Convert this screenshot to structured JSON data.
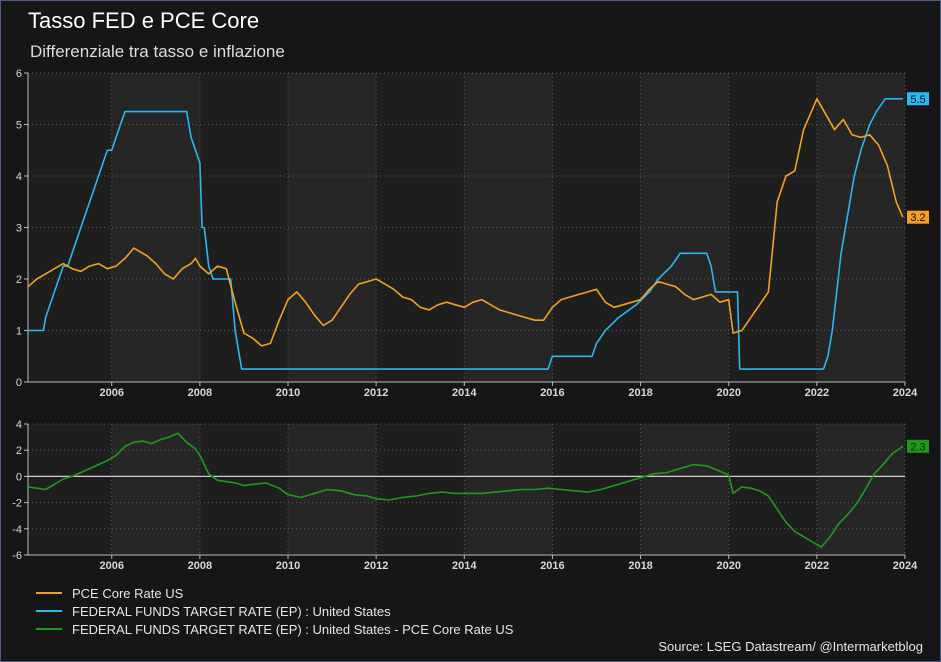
{
  "title": "Tasso FED e PCE Core",
  "subtitle": "Differenziale tra tasso e inflazione",
  "source": "Source: LSEG Datastream/ @Intermarketblog",
  "colors": {
    "pce": "#f5a024",
    "fed": "#29b8f0",
    "diff": "#1f9a1f",
    "background": "#161616",
    "plot_bg": "#1e1e1e"
  },
  "legend": [
    {
      "label": "PCE Core Rate US",
      "color": "#f5a024"
    },
    {
      "label": "FEDERAL FUNDS TARGET RATE (EP) : United States",
      "color": "#29b8f0"
    },
    {
      "label": "FEDERAL FUNDS TARGET RATE (EP) : United States - PCE Core Rate US",
      "color": "#1f9a1f"
    }
  ],
  "chart_data": [
    {
      "type": "line",
      "x_ticks": [
        "2006",
        "2008",
        "2010",
        "2012",
        "2014",
        "2016",
        "2018",
        "2020",
        "2022",
        "2024"
      ],
      "xlim": [
        2004.1,
        2024.0
      ],
      "ylim": [
        0,
        6
      ],
      "y_ticks": [
        0,
        1,
        2,
        3,
        4,
        5,
        6
      ],
      "grid": true,
      "end_labels": [
        "5.5",
        "3.2"
      ],
      "series": [
        {
          "name": "FEDERAL FUNDS TARGET RATE (EP) : United States",
          "x": [
            2004.1,
            2004.45,
            2004.5,
            2004.6,
            2004.7,
            2004.8,
            2004.9,
            2005.0,
            2005.1,
            2005.2,
            2005.3,
            2005.4,
            2005.5,
            2005.6,
            2005.7,
            2005.8,
            2005.9,
            2006.0,
            2006.1,
            2006.2,
            2006.3,
            2006.4,
            2006.5,
            2007.7,
            2007.8,
            2007.9,
            2008.0,
            2008.05,
            2008.1,
            2008.2,
            2008.3,
            2008.7,
            2008.8,
            2008.95,
            2015.9,
            2016.0,
            2016.9,
            2017.0,
            2017.2,
            2017.5,
            2017.9,
            2018.2,
            2018.4,
            2018.7,
            2018.9,
            2019.5,
            2019.6,
            2019.7,
            2020.2,
            2020.25,
            2022.15,
            2022.25,
            2022.35,
            2022.45,
            2022.55,
            2022.7,
            2022.85,
            2023.0,
            2023.1,
            2023.2,
            2023.35,
            2023.55,
            2023.95
          ],
          "y": [
            1.0,
            1.0,
            1.25,
            1.5,
            1.75,
            2.0,
            2.25,
            2.25,
            2.5,
            2.75,
            3.0,
            3.25,
            3.5,
            3.75,
            4.0,
            4.25,
            4.5,
            4.5,
            4.75,
            5.0,
            5.25,
            5.25,
            5.25,
            5.25,
            4.75,
            4.5,
            4.25,
            3.0,
            3.0,
            2.25,
            2.0,
            2.0,
            1.0,
            0.25,
            0.25,
            0.5,
            0.5,
            0.75,
            1.0,
            1.25,
            1.5,
            1.75,
            2.0,
            2.25,
            2.5,
            2.5,
            2.25,
            1.75,
            1.75,
            0.25,
            0.25,
            0.5,
            1.0,
            1.75,
            2.5,
            3.25,
            4.0,
            4.5,
            4.75,
            5.0,
            5.25,
            5.5,
            5.5
          ]
        },
        {
          "name": "PCE Core Rate US",
          "x": [
            2004.1,
            2004.3,
            2004.5,
            2004.7,
            2004.9,
            2005.1,
            2005.3,
            2005.5,
            2005.7,
            2005.9,
            2006.1,
            2006.3,
            2006.5,
            2006.6,
            2006.8,
            2007.0,
            2007.2,
            2007.4,
            2007.6,
            2007.8,
            2007.9,
            2008.0,
            2008.2,
            2008.4,
            2008.6,
            2008.8,
            2009.0,
            2009.2,
            2009.4,
            2009.6,
            2009.8,
            2010.0,
            2010.2,
            2010.4,
            2010.6,
            2010.8,
            2011.0,
            2011.2,
            2011.4,
            2011.6,
            2011.8,
            2012.0,
            2012.2,
            2012.4,
            2012.6,
            2012.8,
            2013.0,
            2013.2,
            2013.4,
            2013.6,
            2013.8,
            2014.0,
            2014.2,
            2014.4,
            2014.6,
            2014.8,
            2015.0,
            2015.2,
            2015.4,
            2015.6,
            2015.8,
            2016.0,
            2016.2,
            2016.4,
            2016.6,
            2016.8,
            2017.0,
            2017.2,
            2017.4,
            2017.6,
            2017.8,
            2018.0,
            2018.2,
            2018.4,
            2018.6,
            2018.8,
            2019.0,
            2019.2,
            2019.4,
            2019.6,
            2019.8,
            2020.0,
            2020.1,
            2020.3,
            2020.5,
            2020.7,
            2020.9,
            2021.1,
            2021.3,
            2021.5,
            2021.7,
            2021.9,
            2022.0,
            2022.2,
            2022.4,
            2022.6,
            2022.8,
            2023.0,
            2023.2,
            2023.4,
            2023.6,
            2023.8,
            2023.95
          ],
          "y": [
            1.85,
            2.0,
            2.1,
            2.2,
            2.3,
            2.2,
            2.15,
            2.25,
            2.3,
            2.2,
            2.25,
            2.4,
            2.6,
            2.55,
            2.45,
            2.3,
            2.1,
            2.0,
            2.2,
            2.3,
            2.4,
            2.25,
            2.1,
            2.25,
            2.2,
            1.55,
            0.95,
            0.85,
            0.7,
            0.75,
            1.2,
            1.6,
            1.75,
            1.55,
            1.3,
            1.1,
            1.2,
            1.45,
            1.7,
            1.9,
            1.95,
            2.0,
            1.9,
            1.8,
            1.65,
            1.6,
            1.45,
            1.4,
            1.5,
            1.55,
            1.5,
            1.45,
            1.55,
            1.6,
            1.5,
            1.4,
            1.35,
            1.3,
            1.25,
            1.2,
            1.2,
            1.45,
            1.6,
            1.65,
            1.7,
            1.75,
            1.8,
            1.55,
            1.45,
            1.5,
            1.55,
            1.6,
            1.8,
            1.95,
            1.9,
            1.85,
            1.7,
            1.6,
            1.65,
            1.7,
            1.55,
            1.6,
            0.95,
            1.0,
            1.25,
            1.5,
            1.75,
            3.5,
            4.0,
            4.1,
            4.9,
            5.3,
            5.5,
            5.2,
            4.9,
            5.1,
            4.8,
            4.75,
            4.8,
            4.6,
            4.2,
            3.5,
            3.2
          ]
        }
      ]
    },
    {
      "type": "line",
      "x_ticks": [
        "2006",
        "2008",
        "2010",
        "2012",
        "2014",
        "2016",
        "2018",
        "2020",
        "2022",
        "2024"
      ],
      "xlim": [
        2004.1,
        2024.0
      ],
      "ylim": [
        -6,
        4
      ],
      "y_ticks": [
        -6,
        -4,
        -2,
        0,
        2,
        4
      ],
      "grid": true,
      "zero_line": true,
      "end_labels": [
        "2.3"
      ],
      "series": [
        {
          "name": "FEDERAL FUNDS TARGET RATE (EP) : United States - PCE Core Rate US",
          "x": [
            2004.1,
            2004.3,
            2004.5,
            2004.7,
            2004.9,
            2005.1,
            2005.3,
            2005.5,
            2005.7,
            2005.9,
            2006.1,
            2006.3,
            2006.5,
            2006.7,
            2006.9,
            2007.1,
            2007.3,
            2007.5,
            2007.7,
            2007.9,
            2008.0,
            2008.2,
            2008.4,
            2008.6,
            2008.8,
            2009.0,
            2009.2,
            2009.5,
            2009.8,
            2010.0,
            2010.3,
            2010.6,
            2010.9,
            2011.2,
            2011.5,
            2011.8,
            2012.0,
            2012.3,
            2012.6,
            2012.9,
            2013.2,
            2013.5,
            2013.8,
            2014.1,
            2014.4,
            2014.7,
            2015.0,
            2015.3,
            2015.6,
            2015.9,
            2016.2,
            2016.5,
            2016.8,
            2017.1,
            2017.4,
            2017.7,
            2018.0,
            2018.3,
            2018.6,
            2018.9,
            2019.2,
            2019.5,
            2019.8,
            2020.0,
            2020.1,
            2020.3,
            2020.5,
            2020.7,
            2020.9,
            2021.1,
            2021.3,
            2021.5,
            2021.7,
            2021.9,
            2022.1,
            2022.3,
            2022.5,
            2022.7,
            2022.9,
            2023.1,
            2023.3,
            2023.5,
            2023.7,
            2023.95
          ],
          "y": [
            -0.8,
            -0.9,
            -1.0,
            -0.6,
            -0.2,
            0.0,
            0.3,
            0.6,
            0.9,
            1.2,
            1.6,
            2.3,
            2.6,
            2.7,
            2.5,
            2.8,
            3.0,
            3.3,
            2.6,
            2.1,
            1.6,
            0.2,
            -0.3,
            -0.4,
            -0.5,
            -0.7,
            -0.6,
            -0.5,
            -0.9,
            -1.4,
            -1.6,
            -1.3,
            -1.0,
            -1.1,
            -1.4,
            -1.5,
            -1.7,
            -1.8,
            -1.6,
            -1.5,
            -1.3,
            -1.2,
            -1.3,
            -1.3,
            -1.3,
            -1.2,
            -1.1,
            -1.0,
            -1.0,
            -0.9,
            -1.0,
            -1.1,
            -1.2,
            -1.0,
            -0.7,
            -0.4,
            -0.1,
            0.2,
            0.3,
            0.6,
            0.9,
            0.8,
            0.4,
            0.1,
            -1.3,
            -0.8,
            -0.9,
            -1.1,
            -1.5,
            -2.5,
            -3.5,
            -4.2,
            -4.6,
            -5.0,
            -5.4,
            -4.6,
            -3.6,
            -2.9,
            -2.1,
            -1.0,
            0.2,
            0.9,
            1.7,
            2.3
          ]
        }
      ]
    }
  ]
}
